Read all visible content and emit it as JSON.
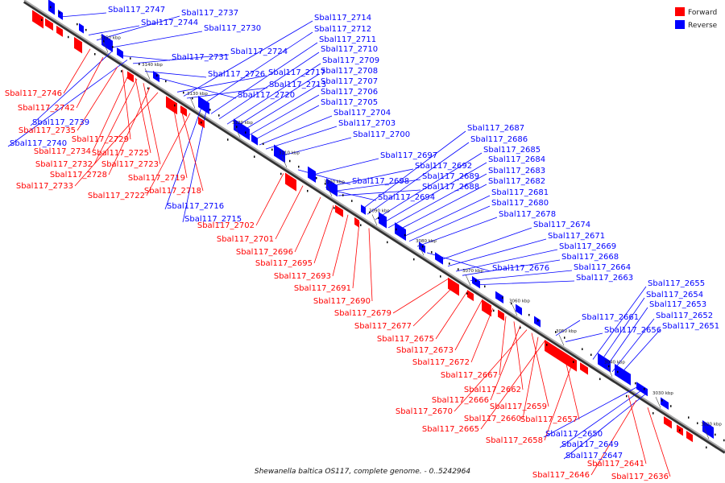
{
  "colors": {
    "forward": "#ff0000",
    "reverse": "#0000ff",
    "axis": "#888888",
    "axis_dark": "#333333",
    "text": "#111111"
  },
  "legend": {
    "forward_label": "Forward",
    "reverse_label": "Reverse"
  },
  "caption": "Shewanella baltica OS117, complete genome. - 0..5242964",
  "ticks": [
    "3150 kbp",
    "3140 kbp",
    "3130 kbp",
    "3120 kbp",
    "3110 kbp",
    "3100 kbp",
    "3090 kbp",
    "3080 kbp",
    "3070 kbp",
    "3060 kbp",
    "3050 kbp",
    "3040 kbp",
    "3030 kbp",
    "3020 kbp"
  ],
  "reverse_labels": [
    "Sbal117_2747",
    "Sbal117_2737",
    "Sbal117_2744",
    "Sbal117_2730",
    "Sbal117_2724",
    "Sbal117_2731",
    "Sbal117_2726",
    "Sbal117_2720",
    "Sbal117_2714",
    "Sbal117_2712",
    "Sbal117_2711",
    "Sbal117_2710",
    "Sbal117_2709",
    "Sbal117_2708",
    "Sbal117_2717",
    "Sbal117_2707",
    "Sbal117_2713",
    "Sbal117_2706",
    "Sbal117_2705",
    "Sbal117_2704",
    "Sbal117_2703",
    "Sbal117_2700",
    "Sbal117_2687",
    "Sbal117_2686",
    "Sbal117_2685",
    "Sbal117_2697",
    "Sbal117_2684",
    "Sbal117_2692",
    "Sbal117_2683",
    "Sbal117_2689",
    "Sbal117_2682",
    "Sbal117_2698",
    "Sbal117_2688",
    "Sbal117_2681",
    "Sbal117_2694",
    "Sbal117_2680",
    "Sbal117_2678",
    "Sbal117_2674",
    "Sbal117_2671",
    "Sbal117_2669",
    "Sbal117_2668",
    "Sbal117_2676",
    "Sbal117_2664",
    "Sbal117_2663",
    "Sbal117_2655",
    "Sbal117_2654",
    "Sbal117_2653",
    "Sbal117_2661",
    "Sbal117_2652",
    "Sbal117_2656",
    "Sbal117_2651",
    "Sbal117_2739",
    "Sbal117_2740",
    "Sbal117_2716",
    "Sbal117_2715",
    "Sbal117_2650",
    "Sbal117_2649",
    "Sbal117_2647"
  ],
  "forward_labels": [
    "Sbal117_2746",
    "Sbal117_2742",
    "Sbal117_2735",
    "Sbal117_2729",
    "Sbal117_2734",
    "Sbal117_2725",
    "Sbal117_2732",
    "Sbal117_2723",
    "Sbal117_2728",
    "Sbal117_2733",
    "Sbal117_2719",
    "Sbal117_2718",
    "Sbal117_2722",
    "Sbal117_2702",
    "Sbal117_2701",
    "Sbal117_2696",
    "Sbal117_2695",
    "Sbal117_2693",
    "Sbal117_2691",
    "Sbal117_2690",
    "Sbal117_2679",
    "Sbal117_2677",
    "Sbal117_2675",
    "Sbal117_2673",
    "Sbal117_2672",
    "Sbal117_2667",
    "Sbal117_2662",
    "Sbal117_2666",
    "Sbal117_2670",
    "Sbal117_2659",
    "Sbal117_2660",
    "Sbal117_2665",
    "Sbal117_2657",
    "Sbal117_2658",
    "Sbal117_2641",
    "Sbal117_2646",
    "Sbal117_2636"
  ]
}
